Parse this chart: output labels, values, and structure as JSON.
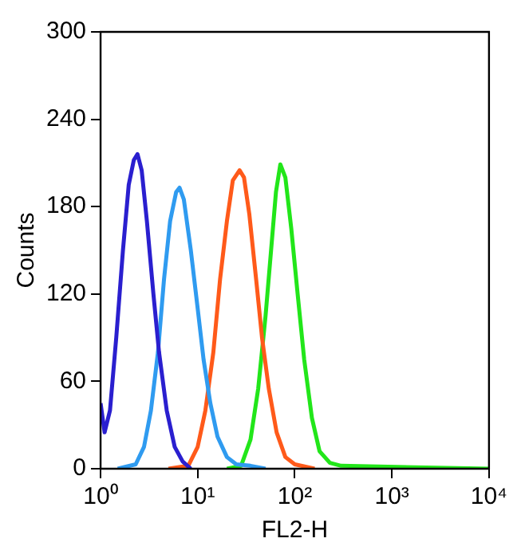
{
  "chart_data": {
    "type": "line",
    "xlabel": "FL2-H",
    "ylabel": "Counts",
    "log": "x",
    "grid": false,
    "legend": false,
    "marker": "none",
    "line_style": "solid",
    "xlim": [
      1,
      10000
    ],
    "xticks": [
      {
        "value": 1,
        "label": "10⁰"
      },
      {
        "value": 10,
        "label": "10¹"
      },
      {
        "value": 100,
        "label": "10²"
      },
      {
        "value": 1000,
        "label": "10³"
      },
      {
        "value": 10000,
        "label": "10⁴"
      }
    ],
    "ylim": [
      0,
      300
    ],
    "yticks": [
      0,
      60,
      120,
      180,
      240,
      300
    ],
    "series": [
      {
        "color": "#2a1fcf",
        "x": [
          1,
          1.1,
          1.25,
          1.45,
          1.7,
          1.95,
          2.2,
          2.4,
          2.65,
          3.0,
          3.5,
          4.0,
          4.8,
          5.8,
          7,
          8.5
        ],
        "values": [
          45,
          25,
          40,
          90,
          150,
          195,
          212,
          216,
          205,
          170,
          120,
          80,
          40,
          15,
          5,
          0
        ]
      },
      {
        "color": "#2f9bf0",
        "x": [
          1.5,
          2.3,
          2.8,
          3.3,
          3.9,
          4.5,
          5.2,
          6.0,
          6.5,
          7.2,
          8.5,
          10,
          11.5,
          13.5,
          16,
          20,
          25,
          35,
          50
        ],
        "values": [
          0,
          3,
          15,
          40,
          80,
          130,
          170,
          190,
          193,
          185,
          150,
          110,
          75,
          45,
          22,
          8,
          3,
          2,
          0
        ]
      },
      {
        "color": "#ff5a1a",
        "x": [
          5,
          8,
          10,
          12,
          14.5,
          17,
          20,
          23,
          27,
          30,
          34,
          40,
          46,
          54,
          65,
          80,
          100,
          160
        ],
        "values": [
          0,
          2,
          15,
          40,
          80,
          130,
          170,
          198,
          205,
          200,
          175,
          130,
          90,
          55,
          25,
          8,
          3,
          0
        ]
      },
      {
        "color": "#22e61a",
        "x": [
          20,
          28,
          35,
          42,
          50,
          57,
          64,
          71,
          80,
          92,
          107,
          125,
          150,
          180,
          230,
          300,
          10000
        ],
        "values": [
          0,
          2,
          20,
          55,
          105,
          150,
          190,
          209,
          200,
          165,
          120,
          75,
          35,
          12,
          4,
          2,
          0
        ]
      }
    ]
  }
}
